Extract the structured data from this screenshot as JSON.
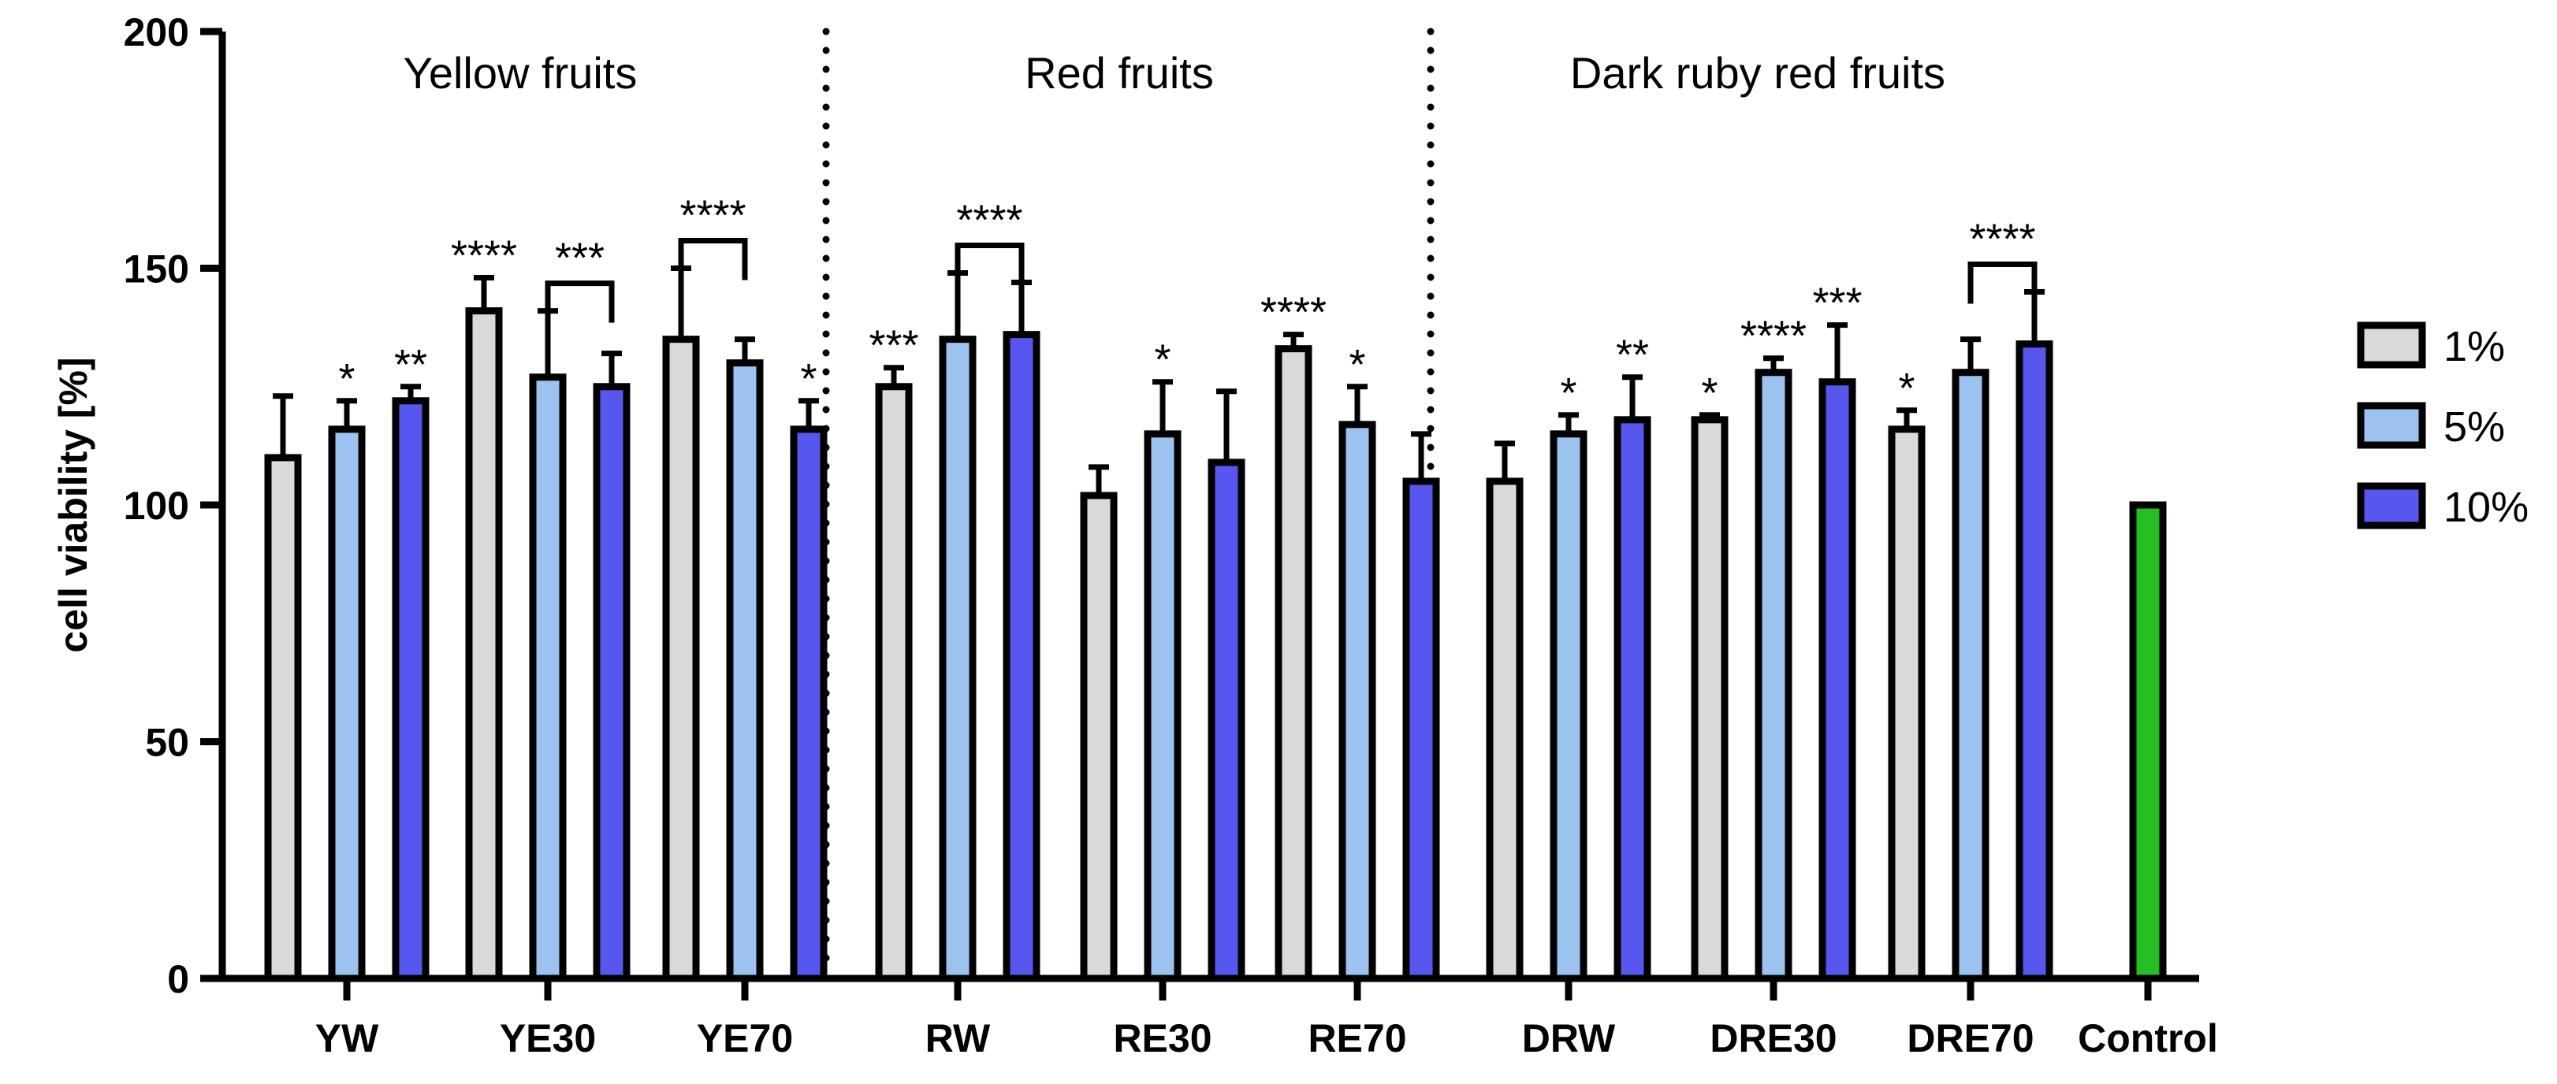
{
  "chart_data": {
    "type": "bar",
    "ylabel": "cell viability [%]",
    "ylim": [
      0,
      200
    ],
    "yticks": [
      0,
      50,
      100,
      150,
      200
    ],
    "categories": [
      "YW",
      "YE30",
      "YE70",
      "RW",
      "RE30",
      "RE70",
      "DRW",
      "DRE30",
      "DRE70",
      "Control"
    ],
    "series": [
      {
        "name": "1%",
        "color": "#d9d9d9",
        "values": [
          110,
          141,
          135,
          125,
          102,
          133,
          105,
          118,
          116,
          null
        ],
        "errors": [
          13,
          7,
          15,
          4,
          6,
          3,
          8,
          1,
          4,
          null
        ],
        "sig": [
          "",
          "****",
          "",
          "***",
          "",
          "****",
          "",
          "*",
          "*",
          ""
        ]
      },
      {
        "name": "5%",
        "color": "#9cc3f0",
        "values": [
          116,
          127,
          130,
          135,
          115,
          117,
          115,
          128,
          128,
          null
        ],
        "errors": [
          6,
          14,
          5,
          14,
          11,
          8,
          4,
          3,
          7,
          null
        ],
        "sig": [
          "*",
          "",
          "",
          "",
          "*",
          "*",
          "*",
          "****",
          "",
          ""
        ]
      },
      {
        "name": "10%",
        "color": "#5757f0",
        "values": [
          122,
          125,
          116,
          136,
          109,
          105,
          118,
          126,
          134,
          null
        ],
        "errors": [
          3,
          7,
          6,
          11,
          15,
          10,
          9,
          12,
          11,
          null
        ],
        "sig": [
          "**",
          "",
          "*",
          "",
          "",
          "",
          "**",
          "***",
          "",
          ""
        ]
      }
    ],
    "control": {
      "name": "Control",
      "value": 100,
      "color": "#22c022"
    },
    "group_labels": [
      "Yellow fruits",
      "Red fruits",
      "Dark ruby red fruits"
    ],
    "brackets": [
      {
        "category": "YE30",
        "from": "5%",
        "to": "10%",
        "label": "***"
      },
      {
        "category": "YE70",
        "from": "1%",
        "to": "5%",
        "label": "****"
      },
      {
        "category": "RW",
        "from": "5%",
        "to": "10%",
        "label": "****"
      },
      {
        "category": "DRE70",
        "from": "5%",
        "to": "10%",
        "label": "****"
      }
    ],
    "legend": {
      "position": "right",
      "entries": [
        "1%",
        "5%",
        "10%"
      ]
    }
  }
}
